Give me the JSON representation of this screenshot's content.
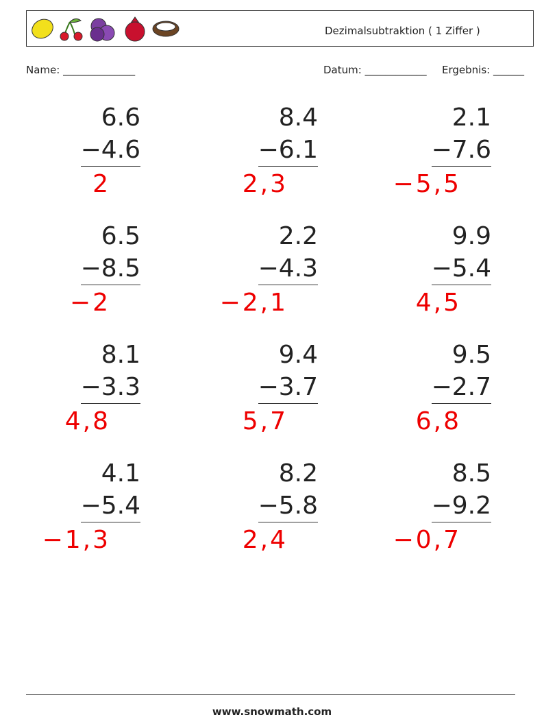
{
  "header": {
    "title": "Dezimalsubtraktion ( 1 Ziffer )"
  },
  "fields": {
    "name": "Name: ______________",
    "date": "Datum: ____________",
    "result": "Ergebnis: ______"
  },
  "problems": [
    {
      "top": "6.6",
      "bottom": "−4.6",
      "answer": "2"
    },
    {
      "top": "8.4",
      "bottom": "−6.1",
      "answer": "2,3"
    },
    {
      "top": "2.1",
      "bottom": "−7.6",
      "answer": "−5,5"
    },
    {
      "top": "6.5",
      "bottom": "−8.5",
      "answer": "−2"
    },
    {
      "top": "2.2",
      "bottom": "−4.3",
      "answer": "−2,1"
    },
    {
      "top": "9.9",
      "bottom": "−5.4",
      "answer": "4,5"
    },
    {
      "top": "8.1",
      "bottom": "−3.3",
      "answer": "4,8"
    },
    {
      "top": "9.4",
      "bottom": "−3.7",
      "answer": "5,7"
    },
    {
      "top": "9.5",
      "bottom": "−2.7",
      "answer": "6,8"
    },
    {
      "top": "4.1",
      "bottom": "−5.4",
      "answer": "−1,3"
    },
    {
      "top": "8.2",
      "bottom": "−5.8",
      "answer": "2,4"
    },
    {
      "top": "8.5",
      "bottom": "−9.2",
      "answer": "−0,7"
    }
  ],
  "footer": {
    "url": "www.snowmath.com"
  }
}
